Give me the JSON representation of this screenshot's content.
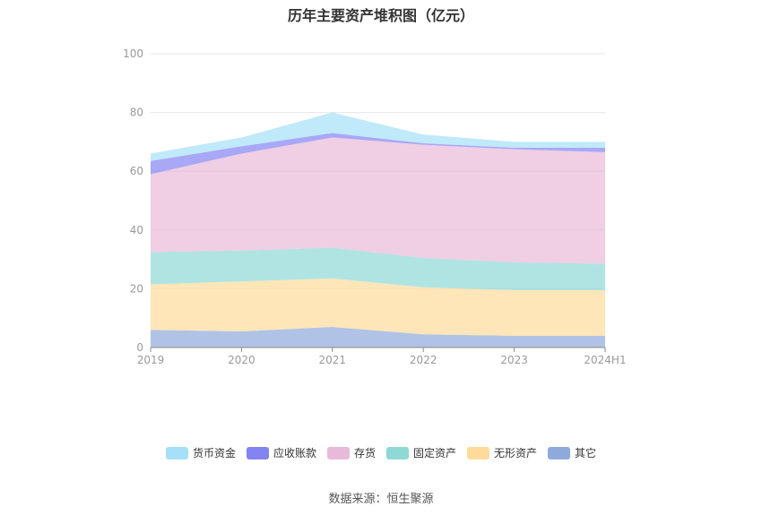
{
  "chart_data": {
    "type": "area",
    "stacked": true,
    "title": "历年主要资产堆积图（亿元）",
    "x": [
      "2019",
      "2020",
      "2021",
      "2022",
      "2023",
      "2024H1"
    ],
    "ylim": [
      0,
      100
    ],
    "yticks": [
      0,
      20,
      40,
      60,
      80,
      100
    ],
    "grid": true,
    "legend_position": "bottom",
    "series": [
      {
        "name": "其它",
        "color": "#8eaadb",
        "values": [
          6.0,
          5.5,
          7.0,
          4.5,
          4.0,
          4.0
        ]
      },
      {
        "name": "无形资产",
        "color": "#fedb9a",
        "values": [
          15.5,
          17.0,
          16.5,
          16.0,
          15.5,
          15.5
        ]
      },
      {
        "name": "固定资产",
        "color": "#8ed9d6",
        "values": [
          11.0,
          10.5,
          10.5,
          10.0,
          9.5,
          9.0
        ]
      },
      {
        "name": "存货",
        "color": "#e9b9d9",
        "values": [
          26.5,
          33.0,
          37.5,
          38.5,
          38.5,
          38.0
        ]
      },
      {
        "name": "应收账款",
        "color": "#8383f2",
        "values": [
          4.5,
          2.5,
          1.5,
          0.5,
          0.5,
          1.5
        ]
      },
      {
        "name": "货币资金",
        "color": "#a5e0f8",
        "values": [
          2.5,
          3.0,
          7.0,
          3.0,
          2.0,
          2.0
        ]
      }
    ]
  },
  "legend_order": [
    "货币资金",
    "应收账款",
    "存货",
    "固定资产",
    "无形资产",
    "其它"
  ],
  "source": "数据来源：恒生聚源"
}
